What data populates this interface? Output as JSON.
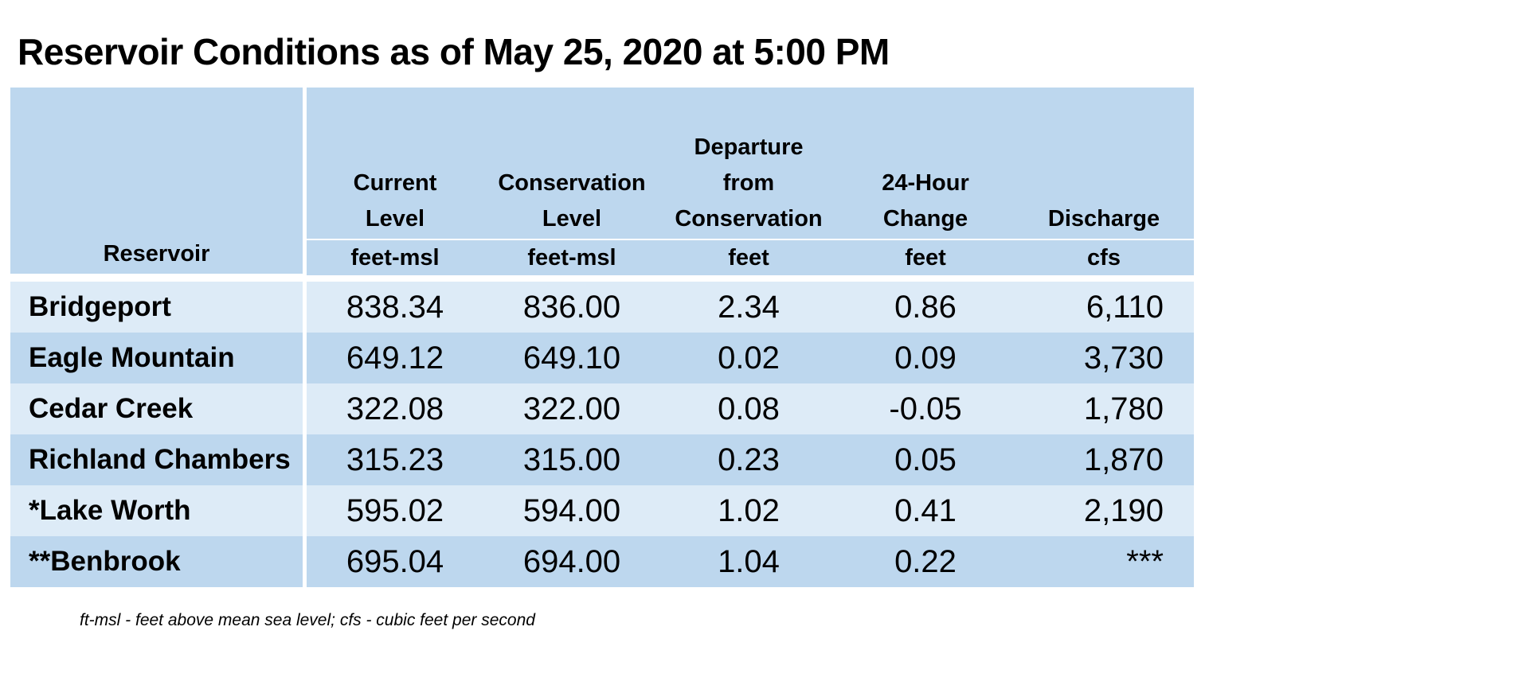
{
  "title": "Reservoir Conditions as of May 25, 2020 at 5:00 PM",
  "columns": [
    {
      "header": "Reservoir",
      "unit": ""
    },
    {
      "header_lines": [
        "",
        "Current",
        "Level"
      ],
      "unit": "feet-msl"
    },
    {
      "header_lines": [
        "",
        "Conservation",
        "Level"
      ],
      "unit": "feet-msl"
    },
    {
      "header_lines": [
        "Departure",
        "from",
        "Conservation"
      ],
      "unit": "feet"
    },
    {
      "header_lines": [
        "",
        "24-Hour",
        "Change"
      ],
      "unit": "feet"
    },
    {
      "header_lines": [
        "",
        "",
        "Discharge"
      ],
      "unit": "cfs"
    }
  ],
  "rows": [
    {
      "name": "Bridgeport",
      "current": "838.34",
      "conservation": "836.00",
      "departure": "2.34",
      "change": "0.86",
      "discharge": "6,110"
    },
    {
      "name": "Eagle Mountain",
      "current": "649.12",
      "conservation": "649.10",
      "departure": "0.02",
      "change": "0.09",
      "discharge": "3,730"
    },
    {
      "name": "Cedar Creek",
      "current": "322.08",
      "conservation": "322.00",
      "departure": "0.08",
      "change": "-0.05",
      "discharge": "1,780"
    },
    {
      "name": "Richland Chambers",
      "current": "315.23",
      "conservation": "315.00",
      "departure": "0.23",
      "change": "0.05",
      "discharge": "1,870"
    },
    {
      "name": "*Lake Worth",
      "current": "595.02",
      "conservation": "594.00",
      "departure": "1.02",
      "change": "0.41",
      "discharge": "2,190"
    },
    {
      "name": "**Benbrook",
      "current": "695.04",
      "conservation": "694.00",
      "departure": "1.04",
      "change": "0.22",
      "discharge": "***"
    }
  ],
  "footnote": "ft-msl - feet above mean sea level; cfs - cubic feet per second",
  "colors": {
    "header_bg": "#bdd7ee",
    "row_light": "#ddebf7",
    "row_dark": "#bdd7ee"
  }
}
